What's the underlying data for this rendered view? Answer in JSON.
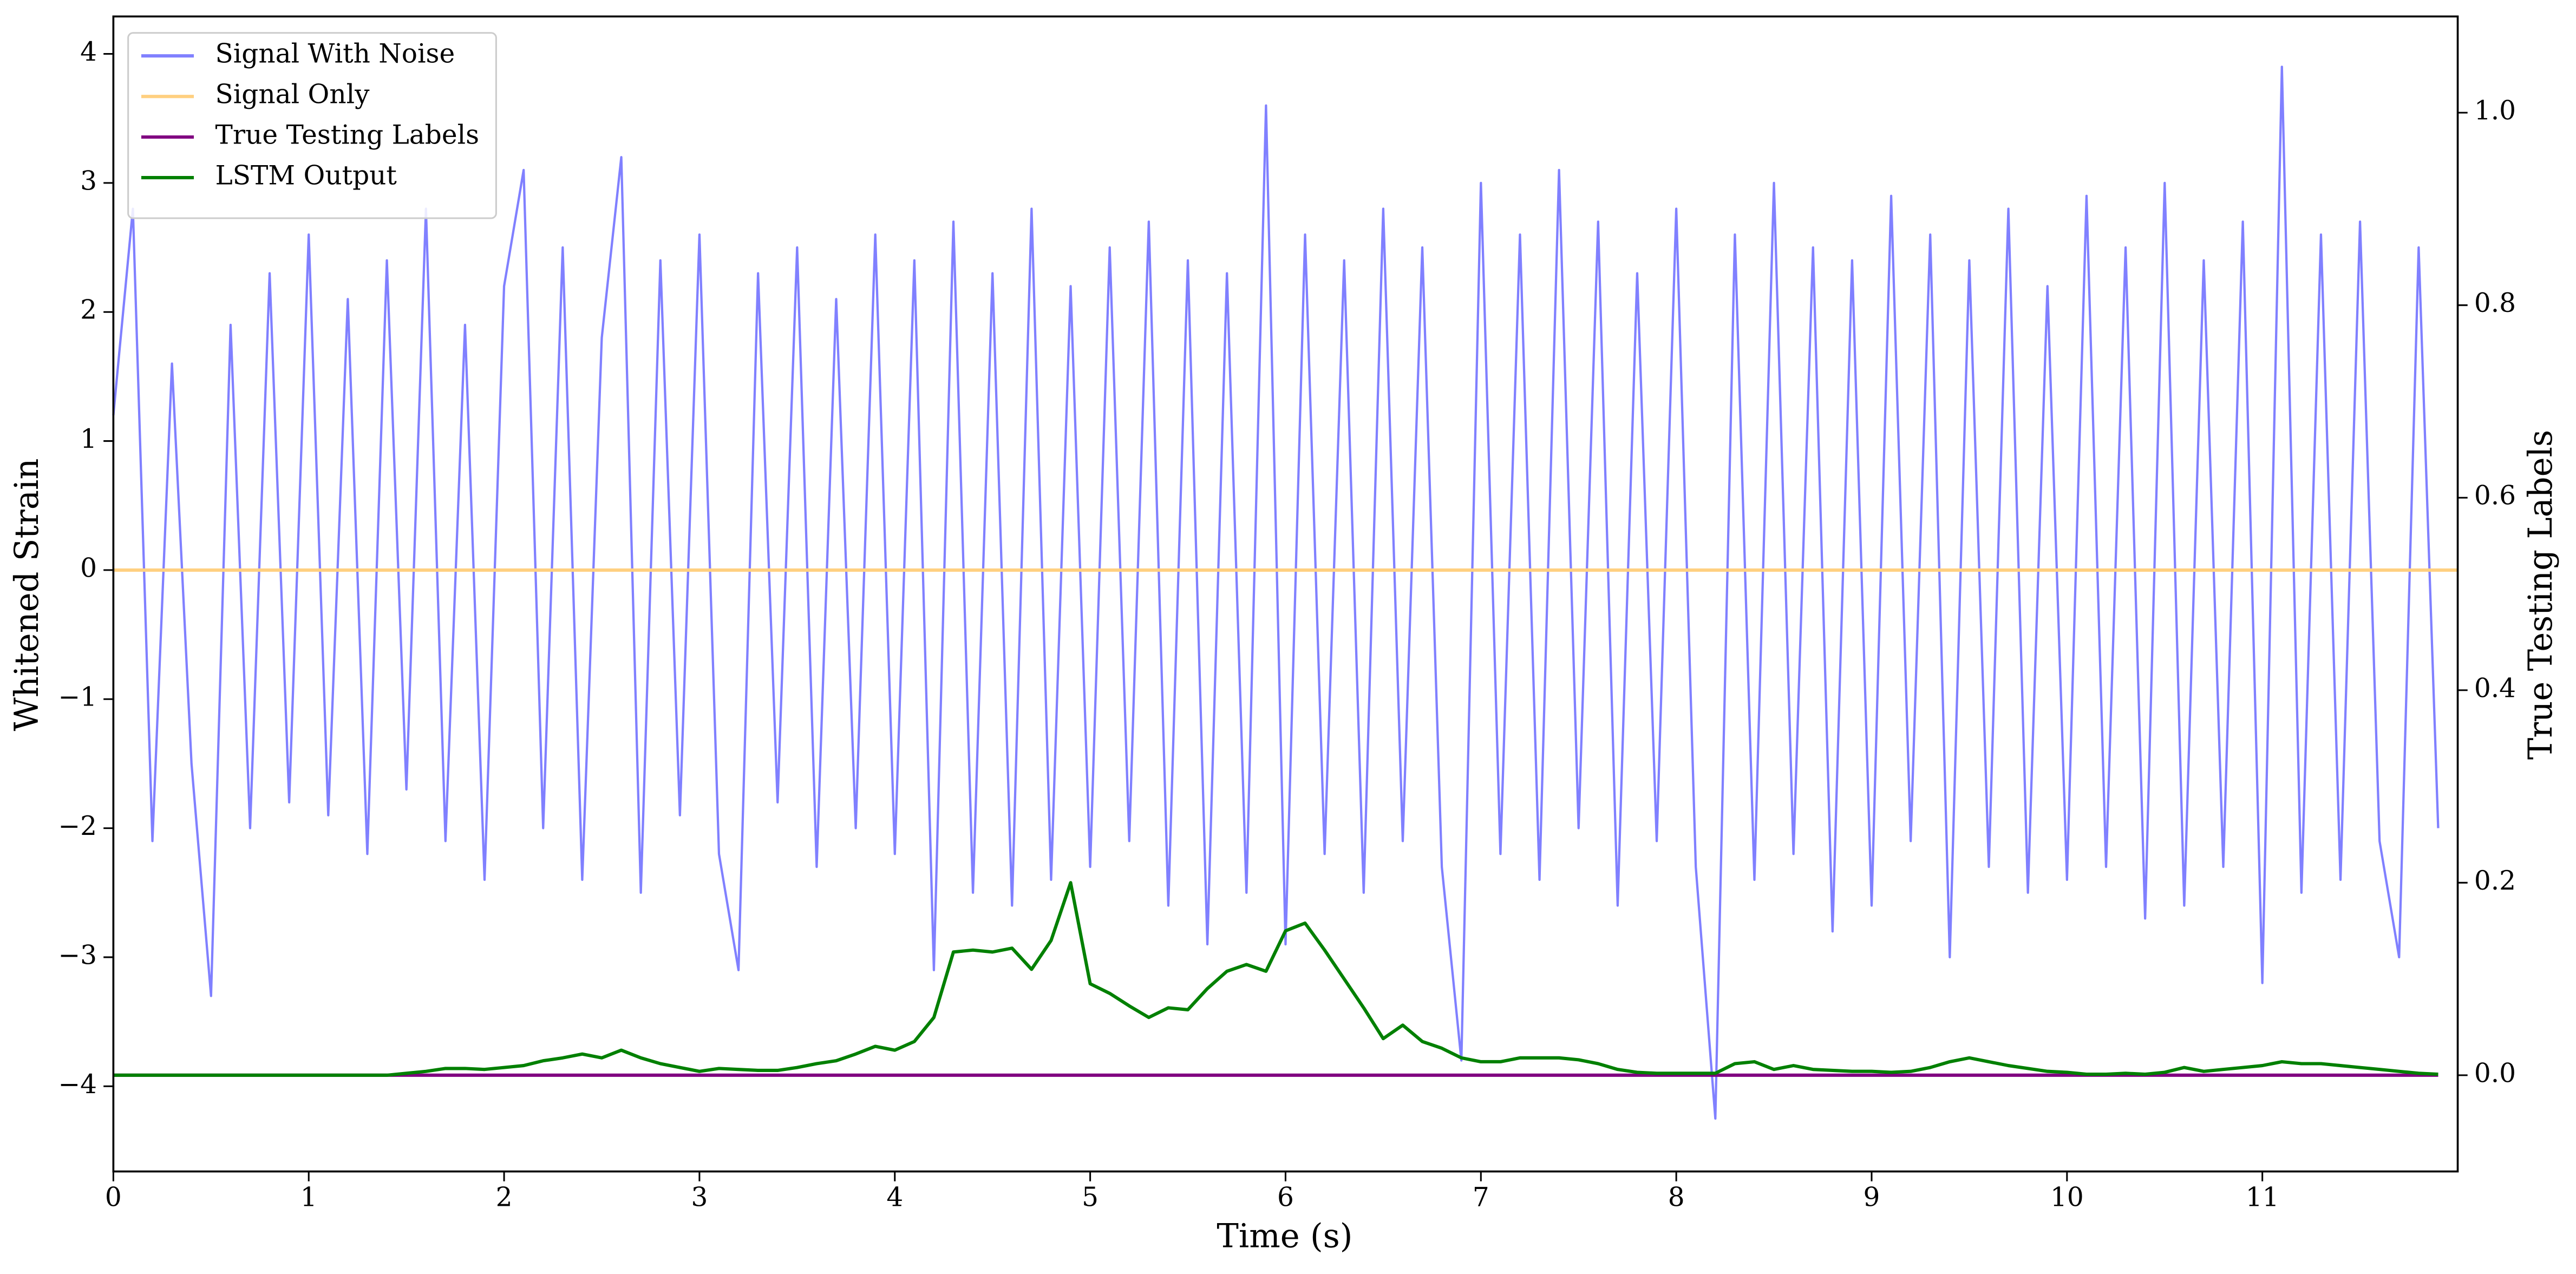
{
  "chart_data": {
    "type": "line",
    "xlabel": "Time (s)",
    "ylabel": "Whitened Strain",
    "y2label": "True Testing Labels",
    "x": [
      0,
      0.1,
      0.2,
      0.3,
      0.4,
      0.5,
      0.6,
      0.7,
      0.8,
      0.9,
      1,
      1.1,
      1.2,
      1.3,
      1.4,
      1.5,
      1.6,
      1.7,
      1.8,
      1.9,
      2,
      2.1,
      2.2,
      2.3,
      2.4,
      2.5,
      2.6,
      2.7,
      2.8,
      2.9,
      3,
      3.1,
      3.2,
      3.3,
      3.4,
      3.5,
      3.6,
      3.7,
      3.8,
      3.9,
      4,
      4.1,
      4.2,
      4.3,
      4.4,
      4.5,
      4.6,
      4.7,
      4.8,
      4.9,
      5,
      5.1,
      5.2,
      5.3,
      5.4,
      5.5,
      5.6,
      5.7,
      5.8,
      5.9,
      6,
      6.1,
      6.2,
      6.3,
      6.4,
      6.5,
      6.6,
      6.7,
      6.8,
      6.9,
      7,
      7.1,
      7.2,
      7.3,
      7.4,
      7.5,
      7.6,
      7.7,
      7.8,
      7.9,
      8,
      8.1,
      8.2,
      8.3,
      8.4,
      8.5,
      8.6,
      8.7,
      8.8,
      8.9,
      9,
      9.1,
      9.2,
      9.3,
      9.4,
      9.5,
      9.6,
      9.7,
      9.8,
      9.9,
      10,
      10.1,
      10.2,
      10.3,
      10.4,
      10.5,
      10.6,
      10.7,
      10.8,
      10.9,
      11,
      11.1,
      11.2,
      11.3,
      11.4,
      11.5,
      11.6,
      11.7,
      11.8,
      11.9
    ],
    "series": [
      {
        "name": "Signal With Noise",
        "color": "#8080ff",
        "values": [
          1.2,
          2.8,
          -2.1,
          1.6,
          -1.5,
          -3.3,
          1.9,
          -2.0,
          2.3,
          -1.8,
          2.6,
          -1.9,
          2.1,
          -2.2,
          2.4,
          -1.7,
          2.8,
          -2.1,
          1.9,
          -2.4,
          2.2,
          3.1,
          -2.0,
          2.5,
          -2.4,
          1.8,
          3.2,
          -2.5,
          2.4,
          -1.9,
          2.6,
          -2.2,
          -3.1,
          2.3,
          -1.8,
          2.5,
          -2.3,
          2.1,
          -2.0,
          2.6,
          -2.2,
          2.4,
          -3.1,
          2.7,
          -2.5,
          2.3,
          -2.6,
          2.8,
          -2.4,
          2.2,
          -2.3,
          2.5,
          -2.1,
          2.7,
          -2.6,
          2.4,
          -2.9,
          2.3,
          -2.5,
          3.6,
          -2.9,
          2.6,
          -2.2,
          2.4,
          -2.5,
          2.8,
          -2.1,
          2.5,
          -2.3,
          -3.8,
          3.0,
          -2.2,
          2.6,
          -2.4,
          3.1,
          -2.0,
          2.7,
          -2.6,
          2.3,
          -2.1,
          2.8,
          -2.3,
          -4.25,
          2.6,
          -2.4,
          3.0,
          -2.2,
          2.5,
          -2.8,
          2.4,
          -2.6,
          2.9,
          -2.1,
          2.6,
          -3.0,
          2.4,
          -2.3,
          2.8,
          -2.5,
          2.2,
          -2.4,
          2.9,
          -2.3,
          2.5,
          -2.7,
          3.0,
          -2.6,
          2.4,
          -2.3,
          2.7,
          -3.2,
          3.9,
          -2.5,
          2.6,
          -2.4,
          2.7,
          -2.1,
          -3.0,
          2.5,
          -2.0
        ]
      },
      {
        "name": "Signal Only",
        "color": "#ffd080",
        "x": [
          0,
          12
        ],
        "values": [
          0,
          0
        ]
      },
      {
        "name": "True Testing Labels",
        "color": "#800080",
        "axis": "y2",
        "x": [
          0,
          11.9
        ],
        "values": [
          0,
          0
        ]
      },
      {
        "name": "LSTM Output",
        "color": "#008000",
        "axis": "y2",
        "values": [
          0,
          0,
          0,
          0,
          0,
          0,
          0,
          0,
          0,
          0,
          0,
          0,
          0,
          0,
          0,
          0.002,
          0.004,
          0.007,
          0.007,
          0.006,
          0.008,
          0.01,
          0.015,
          0.018,
          0.022,
          0.018,
          0.026,
          0.018,
          0.012,
          0.008,
          0.004,
          0.007,
          0.006,
          0.005,
          0.005,
          0.008,
          0.012,
          0.015,
          0.022,
          0.03,
          0.026,
          0.035,
          0.06,
          0.128,
          0.13,
          0.128,
          0.132,
          0.11,
          0.14,
          0.2,
          0.095,
          0.085,
          0.072,
          0.06,
          0.07,
          0.068,
          0.09,
          0.108,
          0.115,
          0.108,
          0.15,
          0.158,
          0.13,
          0.1,
          0.07,
          0.038,
          0.052,
          0.035,
          0.028,
          0.018,
          0.014,
          0.014,
          0.018,
          0.018,
          0.018,
          0.016,
          0.012,
          0.006,
          0.003,
          0.002,
          0.002,
          0.002,
          0.002,
          0.012,
          0.014,
          0.006,
          0.01,
          0.006,
          0.005,
          0.004,
          0.004,
          0.003,
          0.004,
          0.008,
          0.014,
          0.018,
          0.014,
          0.01,
          0.007,
          0.004,
          0.003,
          0.001,
          0.001,
          0.002,
          0.001,
          0.003,
          0.008,
          0.004,
          0.006,
          0.008,
          0.01,
          0.014,
          0.012,
          0.012,
          0.01,
          0.008,
          0.006,
          0.004,
          0.002,
          0.001
        ]
      }
    ],
    "xlim": [
      0,
      12
    ],
    "xticks": [
      0,
      1,
      2,
      3,
      4,
      5,
      6,
      7,
      8,
      9,
      10,
      11
    ],
    "ylim": [
      -4.66,
      4.29
    ],
    "yticks": [
      {
        "value": -4,
        "label": "−4"
      },
      {
        "value": -3,
        "label": "−3"
      },
      {
        "value": -2,
        "label": "−2"
      },
      {
        "value": -1,
        "label": "−1"
      },
      0,
      1,
      2,
      3,
      4
    ],
    "y2lim": [
      -0.1,
      1.1
    ],
    "y2ticks": [
      {
        "value": 0,
        "label": "0.0"
      },
      0.2,
      0.4,
      0.6,
      0.8,
      {
        "value": 1,
        "label": "1.0"
      }
    ],
    "legend": "upper left"
  }
}
